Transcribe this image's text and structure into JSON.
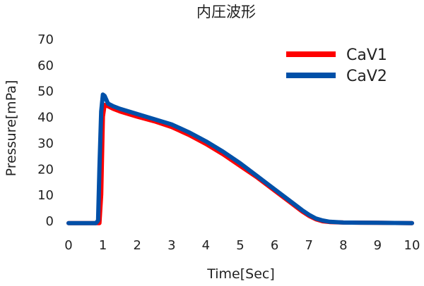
{
  "chart_data": {
    "type": "line",
    "title": "内圧波形",
    "xlabel": "Time[Sec]",
    "ylabel": "Pressure[mPa]",
    "xlim": [
      0,
      10
    ],
    "ylim": [
      0,
      70
    ],
    "xticks": [
      "0",
      "1",
      "2",
      "3",
      "4",
      "5",
      "6",
      "7",
      "8",
      "9",
      "10"
    ],
    "yticks": [
      "0",
      "10",
      "20",
      "30",
      "40",
      "50",
      "60",
      "70"
    ],
    "grid": false,
    "legend_position": "top-right",
    "series": [
      {
        "name": "CaV1",
        "color": "#ff0000",
        "x": [
          0,
          0.5,
          0.9,
          0.95,
          1.0,
          1.05,
          1.15,
          1.3,
          1.5,
          2.0,
          2.5,
          3.0,
          3.5,
          4.0,
          4.5,
          5.0,
          5.5,
          6.0,
          6.5,
          6.8,
          7.0,
          7.2,
          7.4,
          7.6,
          8.0,
          9.0,
          10.0
        ],
        "values": [
          -1,
          -1,
          -1,
          10,
          40,
          44.5,
          44,
          43,
          42,
          40,
          38.2,
          36,
          33,
          29.5,
          25.5,
          21,
          16.5,
          11.5,
          6.5,
          3.5,
          1.8,
          0.5,
          -0.3,
          -0.6,
          -0.8,
          -0.9,
          -1
        ]
      },
      {
        "name": "CaV2",
        "color": "#0050a8",
        "x": [
          0,
          0.5,
          0.8,
          0.86,
          0.9,
          0.95,
          1.0,
          1.05,
          1.15,
          1.3,
          1.5,
          2.0,
          2.5,
          3.0,
          3.5,
          4.0,
          4.5,
          5.0,
          5.5,
          6.0,
          6.5,
          6.8,
          7.0,
          7.2,
          7.4,
          7.6,
          8.0,
          9.0,
          10.0
        ],
        "values": [
          -1,
          -1,
          -1,
          0,
          20,
          42,
          48.5,
          48,
          45,
          44,
          43,
          41,
          39,
          37,
          34,
          30.5,
          26.5,
          22,
          17,
          12,
          7,
          4,
          2.2,
          0.8,
          0,
          -0.5,
          -0.8,
          -0.9,
          -1
        ]
      }
    ]
  }
}
